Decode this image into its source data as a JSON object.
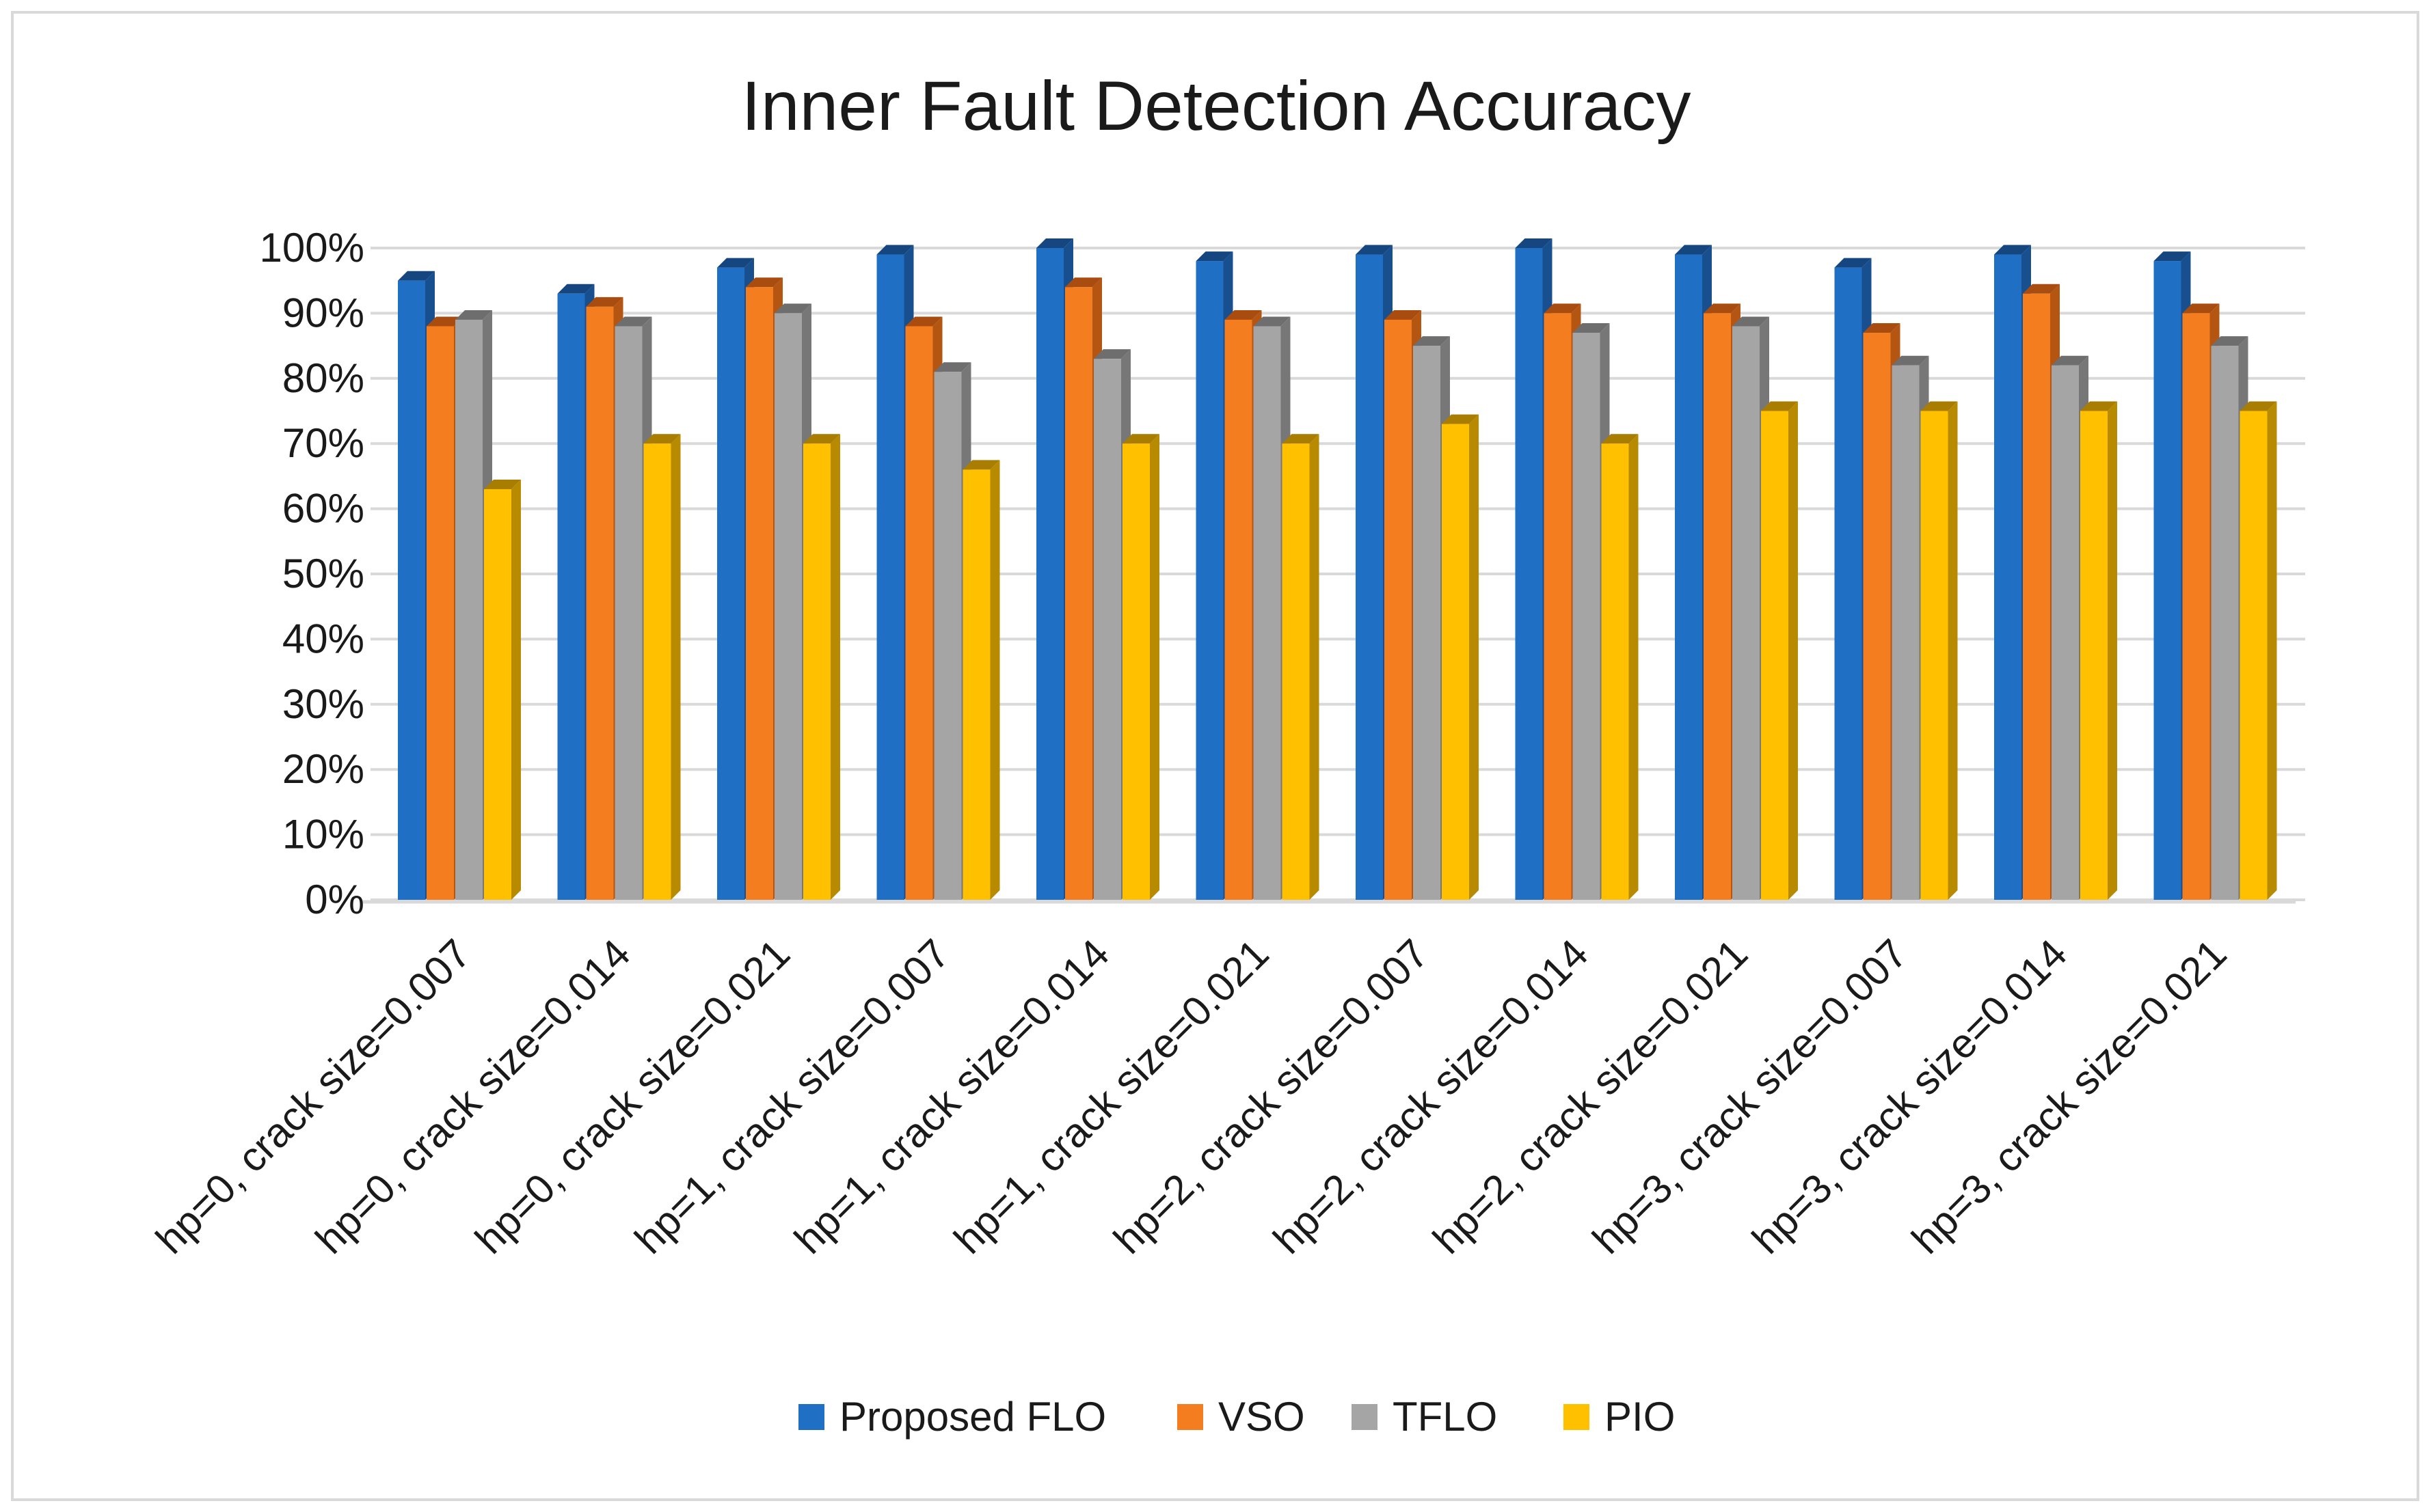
{
  "chart_data": {
    "type": "bar",
    "style": "3d-clustered",
    "title": "Inner Fault Detection Accuracy",
    "xlabel": "",
    "ylabel": "",
    "ylim": [
      0,
      100
    ],
    "yticks": [
      "0%",
      "10%",
      "20%",
      "30%",
      "40%",
      "50%",
      "60%",
      "70%",
      "80%",
      "90%",
      "100%"
    ],
    "grid": true,
    "legend_position": "bottom",
    "categories": [
      "hp=0, crack size=0.007",
      "hp=0, crack size=0.014",
      "hp=0, crack size=0.021",
      "hp=1, crack size=0.007",
      "hp=1, crack size=0.014",
      "hp=1, crack size=0.021",
      "hp=2, crack size=0.007",
      "hp=2, crack size=0.014",
      "hp=2, crack size=0.021",
      "hp=3, crack size=0.007",
      "hp=3, crack size=0.014",
      "hp=3, crack size=0.021"
    ],
    "series": [
      {
        "name": "Proposed FLO",
        "color": "#1f6fc5",
        "side": "#174f8f",
        "top": "#15467f",
        "values": [
          95,
          93,
          97,
          99,
          100,
          98,
          99,
          100,
          99,
          97,
          99,
          98
        ]
      },
      {
        "name": "VSO",
        "color": "#f47d20",
        "side": "#b45512",
        "top": "#a84c10",
        "values": [
          88,
          91,
          94,
          88,
          94,
          89,
          89,
          90,
          90,
          87,
          93,
          90
        ]
      },
      {
        "name": "TFLO",
        "color": "#a5a5a5",
        "side": "#777777",
        "top": "#6e6e6e",
        "values": [
          89,
          88,
          90,
          81,
          83,
          88,
          85,
          87,
          88,
          82,
          82,
          85
        ]
      },
      {
        "name": "PIO",
        "color": "#ffc000",
        "side": "#b88a00",
        "top": "#a97e00",
        "values": [
          63,
          70,
          70,
          66,
          70,
          70,
          73,
          70,
          75,
          75,
          75,
          75
        ]
      }
    ]
  }
}
